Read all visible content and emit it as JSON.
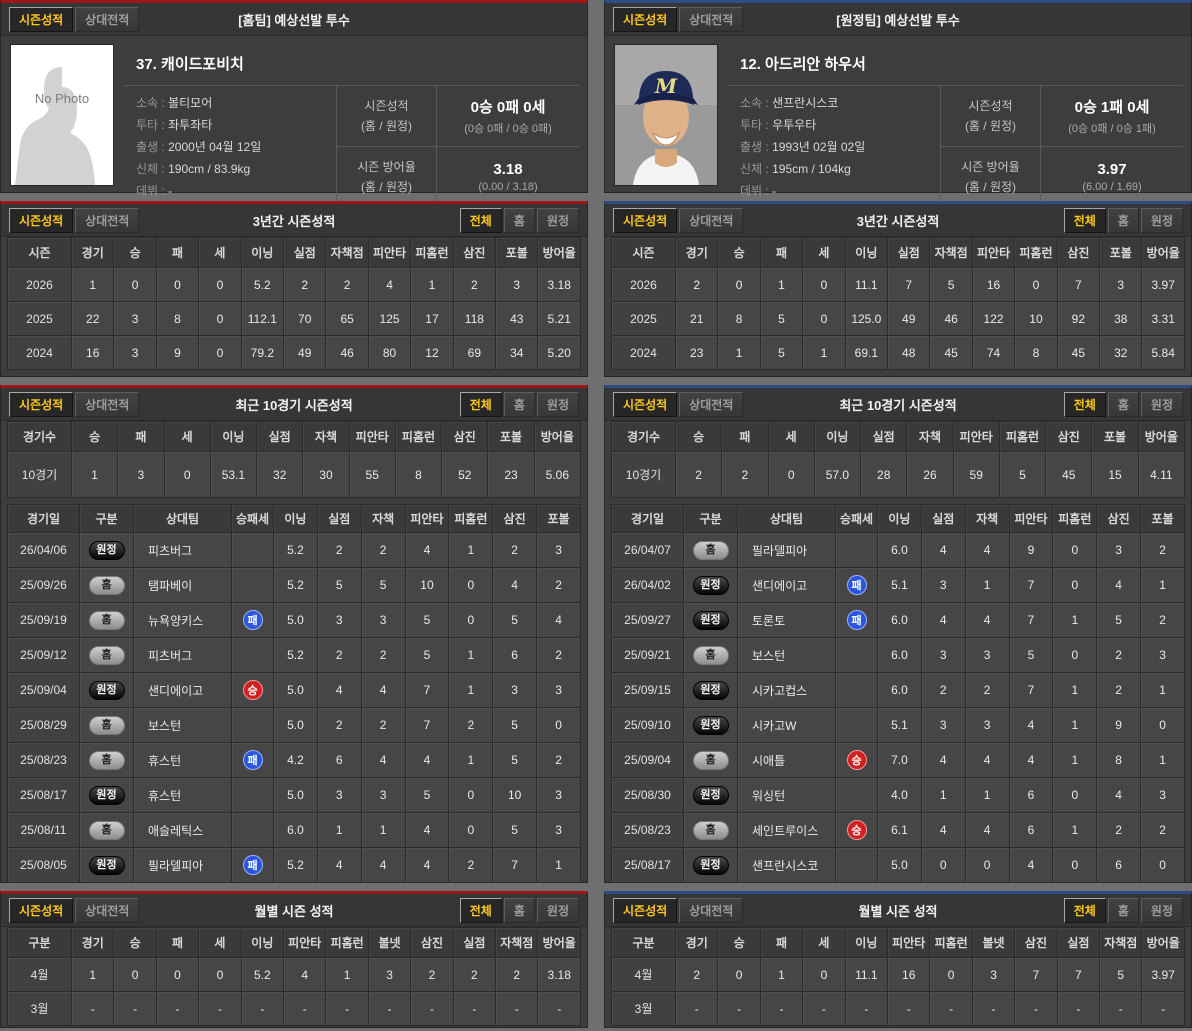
{
  "tabs": {
    "season": "시즌성적",
    "vs": "상대전적",
    "all": "전체",
    "home": "홈",
    "away": "원정"
  },
  "panels": [
    {
      "card_title": "[홈팀] 예상선발 투수",
      "player": {
        "name": "37. 캐이드포비치",
        "photo_text": "No Photo",
        "info": [
          {
            "label": "소속 :",
            "value": "볼티모어"
          },
          {
            "label": "투타 :",
            "value": "좌투좌타"
          },
          {
            "label": "출생 :",
            "value": "2000년 04월 12일"
          },
          {
            "label": "신체 :",
            "value": "190cm / 83.9kg"
          },
          {
            "label": "데뷔 :",
            "value": "-"
          }
        ],
        "season_record": {
          "label": "시즌성적",
          "sub": "(홈 / 원정)",
          "value": "0승 0패 0세",
          "detail": "(0승 0패 / 0승 0패)"
        },
        "season_era": {
          "label": "시즌 방어율",
          "sub": "(홈 / 원정)",
          "value": "3.18",
          "detail": "(0.00 / 3.18)"
        }
      },
      "three_year": {
        "title": "3년간 시즌성적",
        "headers": [
          "시즌",
          "경기",
          "승",
          "패",
          "세",
          "이닝",
          "실점",
          "자책점",
          "피안타",
          "피홈런",
          "삼진",
          "포볼",
          "방어율"
        ],
        "rows": [
          {
            "label": "2026",
            "values": [
              "1",
              "0",
              "0",
              "0",
              "5.2",
              "2",
              "2",
              "4",
              "1",
              "2",
              "3",
              "3.18"
            ]
          },
          {
            "label": "2025",
            "values": [
              "22",
              "3",
              "8",
              "0",
              "112.1",
              "70",
              "65",
              "125",
              "17",
              "118",
              "43",
              "5.21"
            ]
          },
          {
            "label": "2024",
            "values": [
              "16",
              "3",
              "9",
              "0",
              "79.2",
              "49",
              "46",
              "80",
              "12",
              "69",
              "34",
              "5.20"
            ]
          }
        ]
      },
      "recent10": {
        "title": "최근 10경기 시즌성적",
        "summary_headers": [
          "경기수",
          "승",
          "패",
          "세",
          "이닝",
          "실점",
          "자책",
          "피안타",
          "피홈런",
          "삼진",
          "포볼",
          "방어율"
        ],
        "summary_rows": [
          {
            "label": "10경기",
            "values": [
              "1",
              "3",
              "0",
              "53.1",
              "32",
              "30",
              "55",
              "8",
              "52",
              "23",
              "5.06"
            ]
          }
        ],
        "log_headers": [
          "경기일",
          "구분",
          "상대팀",
          "승패세",
          "이닝",
          "실점",
          "자책",
          "피안타",
          "피홈런",
          "삼진",
          "포볼"
        ],
        "log_rows": [
          {
            "date": "26/04/06",
            "venue": {
              "type": "away",
              "label": "원정"
            },
            "opponent": "피츠버그",
            "result": null,
            "stats": [
              "5.2",
              "2",
              "2",
              "4",
              "1",
              "2",
              "3"
            ]
          },
          {
            "date": "25/09/26",
            "venue": {
              "type": "home",
              "label": "홈"
            },
            "opponent": "탬파베이",
            "result": null,
            "stats": [
              "5.2",
              "5",
              "5",
              "10",
              "0",
              "4",
              "2"
            ]
          },
          {
            "date": "25/09/19",
            "venue": {
              "type": "home",
              "label": "홈"
            },
            "opponent": "뉴욕양키스",
            "result": {
              "type": "loss",
              "label": "패"
            },
            "stats": [
              "5.0",
              "3",
              "3",
              "5",
              "0",
              "5",
              "4"
            ]
          },
          {
            "date": "25/09/12",
            "venue": {
              "type": "home",
              "label": "홈"
            },
            "opponent": "피츠버그",
            "result": null,
            "stats": [
              "5.2",
              "2",
              "2",
              "5",
              "1",
              "6",
              "2"
            ]
          },
          {
            "date": "25/09/04",
            "venue": {
              "type": "away",
              "label": "원정"
            },
            "opponent": "샌디에이고",
            "result": {
              "type": "win",
              "label": "승"
            },
            "stats": [
              "5.0",
              "4",
              "4",
              "7",
              "1",
              "3",
              "3"
            ]
          },
          {
            "date": "25/08/29",
            "venue": {
              "type": "home",
              "label": "홈"
            },
            "opponent": "보스턴",
            "result": null,
            "stats": [
              "5.0",
              "2",
              "2",
              "7",
              "2",
              "5",
              "0"
            ]
          },
          {
            "date": "25/08/23",
            "venue": {
              "type": "home",
              "label": "홈"
            },
            "opponent": "휴스턴",
            "result": {
              "type": "loss",
              "label": "패"
            },
            "stats": [
              "4.2",
              "6",
              "4",
              "4",
              "1",
              "5",
              "2"
            ]
          },
          {
            "date": "25/08/17",
            "venue": {
              "type": "away",
              "label": "원정"
            },
            "opponent": "휴스턴",
            "result": null,
            "stats": [
              "5.0",
              "3",
              "3",
              "5",
              "0",
              "10",
              "3"
            ]
          },
          {
            "date": "25/08/11",
            "venue": {
              "type": "home",
              "label": "홈"
            },
            "opponent": "애슬레틱스",
            "result": null,
            "stats": [
              "6.0",
              "1",
              "1",
              "4",
              "0",
              "5",
              "3"
            ]
          },
          {
            "date": "25/08/05",
            "venue": {
              "type": "away",
              "label": "원정"
            },
            "opponent": "필라델피아",
            "result": {
              "type": "loss",
              "label": "패"
            },
            "stats": [
              "5.2",
              "4",
              "4",
              "4",
              "2",
              "7",
              "1"
            ]
          }
        ]
      },
      "monthly": {
        "title": "월별 시즌 성적",
        "headers": [
          "구분",
          "경기",
          "승",
          "패",
          "세",
          "이닝",
          "피안타",
          "피홈런",
          "볼넷",
          "삼진",
          "실점",
          "자책점",
          "방어율"
        ],
        "rows": [
          {
            "label": "4월",
            "values": [
              "1",
              "0",
              "0",
              "0",
              "5.2",
              "4",
              "1",
              "3",
              "2",
              "2",
              "2",
              "3.18"
            ]
          },
          {
            "label": "3월",
            "values": [
              "-",
              "-",
              "-",
              "-",
              "-",
              "-",
              "-",
              "-",
              "-",
              "-",
              "-",
              "-"
            ]
          }
        ]
      }
    },
    {
      "card_title": "[원정팀] 예상선발 투수",
      "player": {
        "name": "12. 아드리안 하우서",
        "info": [
          {
            "label": "소속 :",
            "value": "샌프란시스코"
          },
          {
            "label": "투타 :",
            "value": "우투우타"
          },
          {
            "label": "출생 :",
            "value": "1993년 02월 02일"
          },
          {
            "label": "신체 :",
            "value": "195cm / 104kg"
          },
          {
            "label": "데뷔 :",
            "value": "-"
          }
        ],
        "season_record": {
          "label": "시즌성적",
          "sub": "(홈 / 원정)",
          "value": "0승 1패 0세",
          "detail": "(0승 0패 / 0승 1패)"
        },
        "season_era": {
          "label": "시즌 방어율",
          "sub": "(홈 / 원정)",
          "value": "3.97",
          "detail": "(6.00 / 1.69)"
        }
      },
      "three_year": {
        "title": "3년간 시즌성적",
        "headers": [
          "시즌",
          "경기",
          "승",
          "패",
          "세",
          "이닝",
          "실점",
          "자책점",
          "피안타",
          "피홈런",
          "삼진",
          "포볼",
          "방어율"
        ],
        "rows": [
          {
            "label": "2026",
            "values": [
              "2",
              "0",
              "1",
              "0",
              "11.1",
              "7",
              "5",
              "16",
              "0",
              "7",
              "3",
              "3.97"
            ]
          },
          {
            "label": "2025",
            "values": [
              "21",
              "8",
              "5",
              "0",
              "125.0",
              "49",
              "46",
              "122",
              "10",
              "92",
              "38",
              "3.31"
            ]
          },
          {
            "label": "2024",
            "values": [
              "23",
              "1",
              "5",
              "1",
              "69.1",
              "48",
              "45",
              "74",
              "8",
              "45",
              "32",
              "5.84"
            ]
          }
        ]
      },
      "recent10": {
        "title": "최근 10경기 시즌성적",
        "summary_headers": [
          "경기수",
          "승",
          "패",
          "세",
          "이닝",
          "실점",
          "자책",
          "피안타",
          "피홈런",
          "삼진",
          "포볼",
          "방어율"
        ],
        "summary_rows": [
          {
            "label": "10경기",
            "values": [
              "2",
              "2",
              "0",
              "57.0",
              "28",
              "26",
              "59",
              "5",
              "45",
              "15",
              "4.11"
            ]
          }
        ],
        "log_headers": [
          "경기일",
          "구분",
          "상대팀",
          "승패세",
          "이닝",
          "실점",
          "자책",
          "피안타",
          "피홈런",
          "삼진",
          "포볼"
        ],
        "log_rows": [
          {
            "date": "26/04/07",
            "venue": {
              "type": "home",
              "label": "홈"
            },
            "opponent": "필라델피아",
            "result": null,
            "stats": [
              "6.0",
              "4",
              "4",
              "9",
              "0",
              "3",
              "2"
            ]
          },
          {
            "date": "26/04/02",
            "venue": {
              "type": "away",
              "label": "원정"
            },
            "opponent": "샌디에이고",
            "result": {
              "type": "loss",
              "label": "패"
            },
            "stats": [
              "5.1",
              "3",
              "1",
              "7",
              "0",
              "4",
              "1"
            ]
          },
          {
            "date": "25/09/27",
            "venue": {
              "type": "away",
              "label": "원정"
            },
            "opponent": "토론토",
            "result": {
              "type": "loss",
              "label": "패"
            },
            "stats": [
              "6.0",
              "4",
              "4",
              "7",
              "1",
              "5",
              "2"
            ]
          },
          {
            "date": "25/09/21",
            "venue": {
              "type": "home",
              "label": "홈"
            },
            "opponent": "보스턴",
            "result": null,
            "stats": [
              "6.0",
              "3",
              "3",
              "5",
              "0",
              "2",
              "3"
            ]
          },
          {
            "date": "25/09/15",
            "venue": {
              "type": "away",
              "label": "원정"
            },
            "opponent": "시카고컵스",
            "result": null,
            "stats": [
              "6.0",
              "2",
              "2",
              "7",
              "1",
              "2",
              "1"
            ]
          },
          {
            "date": "25/09/10",
            "venue": {
              "type": "away",
              "label": "원정"
            },
            "opponent": "시카고W",
            "result": null,
            "stats": [
              "5.1",
              "3",
              "3",
              "4",
              "1",
              "9",
              "0"
            ]
          },
          {
            "date": "25/09/04",
            "venue": {
              "type": "home",
              "label": "홈"
            },
            "opponent": "시애틀",
            "result": {
              "type": "win",
              "label": "승"
            },
            "stats": [
              "7.0",
              "4",
              "4",
              "4",
              "1",
              "8",
              "1"
            ]
          },
          {
            "date": "25/08/30",
            "venue": {
              "type": "away",
              "label": "원정"
            },
            "opponent": "워싱턴",
            "result": null,
            "stats": [
              "4.0",
              "1",
              "1",
              "6",
              "0",
              "4",
              "3"
            ]
          },
          {
            "date": "25/08/23",
            "venue": {
              "type": "home",
              "label": "홈"
            },
            "opponent": "세인트루이스",
            "result": {
              "type": "win",
              "label": "승"
            },
            "stats": [
              "6.1",
              "4",
              "4",
              "6",
              "1",
              "2",
              "2"
            ]
          },
          {
            "date": "25/08/17",
            "venue": {
              "type": "away",
              "label": "원정"
            },
            "opponent": "샌프란시스코",
            "result": null,
            "stats": [
              "5.0",
              "0",
              "0",
              "4",
              "0",
              "6",
              "0"
            ]
          }
        ]
      },
      "monthly": {
        "title": "월별 시즌 성적",
        "headers": [
          "구분",
          "경기",
          "승",
          "패",
          "세",
          "이닝",
          "피안타",
          "피홈런",
          "볼넷",
          "삼진",
          "실점",
          "자책점",
          "방어율"
        ],
        "rows": [
          {
            "label": "4월",
            "values": [
              "2",
              "0",
              "1",
              "0",
              "11.1",
              "16",
              "0",
              "3",
              "7",
              "7",
              "5",
              "3.97"
            ]
          },
          {
            "label": "3월",
            "values": [
              "-",
              "-",
              "-",
              "-",
              "-",
              "-",
              "-",
              "-",
              "-",
              "-",
              "-",
              "-"
            ]
          }
        ]
      }
    }
  ]
}
